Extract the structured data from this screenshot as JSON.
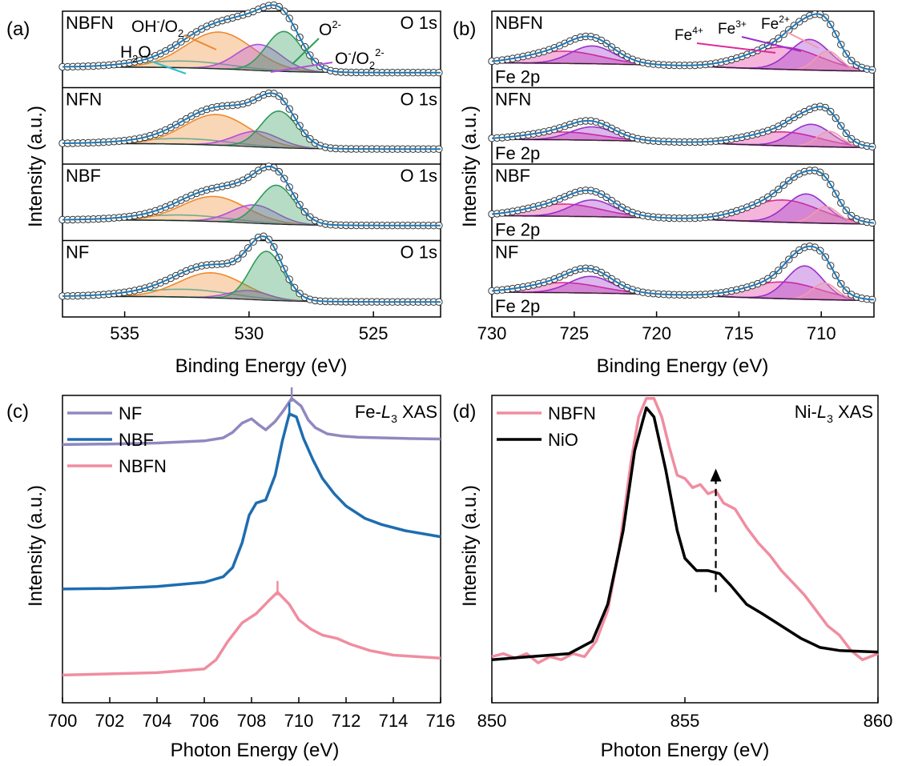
{
  "chart_data": [
    {
      "panel_label": "(a)",
      "type": "line",
      "xlabel": "Binding Energy (eV)",
      "ylabel": "Intensity (a.u.)",
      "xlim": [
        537.5,
        522.3
      ],
      "xticks": [
        535,
        530,
        525
      ],
      "spectrum_label": "O 1s",
      "annotations": [
        {
          "text": "OH",
          "sup": "-",
          "rest": "/O",
          "sub": "2",
          "color": "#ef8a2e"
        },
        {
          "text": "H",
          "sub": "2",
          "rest": "O",
          "color": "#2ebfc9"
        },
        {
          "text": "O",
          "sup": "2-",
          "color": "#2e9c5a"
        },
        {
          "text": "O",
          "sup": "-",
          "rest": "/O",
          "sub": "2",
          "sup2": "2-",
          "color": "#b44fd8"
        }
      ],
      "subpanels": [
        {
          "name": "NBFN",
          "components": [
            {
              "label": "H2O",
              "center": 532.6,
              "height": 0.12,
              "width": 1.9,
              "color": "#2ebfc9",
              "fill": false
            },
            {
              "label": "OH-/O2",
              "center": 531.2,
              "height": 0.66,
              "width": 1.35,
              "color": "#ef8a2e",
              "fill": true
            },
            {
              "label": "O-/O2 2-",
              "center": 529.6,
              "height": 0.47,
              "width": 0.9,
              "color": "#b44fd8",
              "fill": true
            },
            {
              "label": "O2-",
              "center": 528.6,
              "height": 0.72,
              "width": 0.72,
              "color": "#2e9c5a",
              "fill": true
            }
          ]
        },
        {
          "name": "NFN",
          "components": [
            {
              "label": "H2O",
              "center": 532.6,
              "height": 0.1,
              "width": 1.9,
              "color": "#2ebfc9",
              "fill": false
            },
            {
              "label": "OH-/O2",
              "center": 531.3,
              "height": 0.55,
              "width": 1.3,
              "color": "#ef8a2e",
              "fill": true
            },
            {
              "label": "O-/O2 2-",
              "center": 529.7,
              "height": 0.28,
              "width": 0.9,
              "color": "#b44fd8",
              "fill": true
            },
            {
              "label": "O2-",
              "center": 528.8,
              "height": 0.66,
              "width": 0.72,
              "color": "#2e9c5a",
              "fill": true
            }
          ]
        },
        {
          "name": "NBF",
          "components": [
            {
              "label": "H2O",
              "center": 532.6,
              "height": 0.1,
              "width": 1.9,
              "color": "#2ebfc9",
              "fill": false
            },
            {
              "label": "OH-/O2",
              "center": 531.4,
              "height": 0.45,
              "width": 1.3,
              "color": "#ef8a2e",
              "fill": true
            },
            {
              "label": "O-/O2 2-",
              "center": 529.8,
              "height": 0.33,
              "width": 0.9,
              "color": "#b44fd8",
              "fill": true
            },
            {
              "label": "O2-",
              "center": 528.9,
              "height": 0.7,
              "width": 0.72,
              "color": "#2e9c5a",
              "fill": true
            }
          ]
        },
        {
          "name": "NF",
          "components": [
            {
              "label": "H2O",
              "center": 532.6,
              "height": 0.14,
              "width": 1.9,
              "color": "#2ebfc9",
              "fill": false
            },
            {
              "label": "OH-/O2",
              "center": 531.5,
              "height": 0.45,
              "width": 1.3,
              "color": "#ef8a2e",
              "fill": true
            },
            {
              "label": "O-/O2 2-",
              "center": 530.0,
              "height": 0.16,
              "width": 0.8,
              "color": "#b44fd8",
              "fill": true
            },
            {
              "label": "O2-",
              "center": 529.3,
              "height": 0.88,
              "width": 0.66,
              "color": "#2e9c5a",
              "fill": true
            }
          ]
        }
      ]
    },
    {
      "panel_label": "(b)",
      "type": "line",
      "xlabel": "Binding Energy (eV)",
      "ylabel": "Intensity (a.u.)",
      "xlim": [
        730,
        706.8
      ],
      "xticks": [
        730,
        725,
        720,
        715,
        710
      ],
      "spectrum_label": "Fe 2p",
      "annotations": [
        {
          "text": "Fe",
          "sup": "4+",
          "color": "#e0299a"
        },
        {
          "text": "Fe",
          "sup": "3+",
          "color": "#9b2fc9"
        },
        {
          "text": "Fe",
          "sup": "2+",
          "color": "#f29aac"
        }
      ],
      "subpanels": [
        {
          "name": "NBFN",
          "components": [
            {
              "label": "Fe4+",
              "center": 712.3,
              "height": 0.4,
              "width": 2.2,
              "color": "#e0299a",
              "fill": true
            },
            {
              "label": "Fe3+",
              "center": 710.7,
              "height": 0.55,
              "width": 1.2,
              "color": "#9b2fc9",
              "fill": true
            },
            {
              "label": "Fe2+",
              "center": 709.6,
              "height": 0.35,
              "width": 0.75,
              "color": "#f29aac",
              "fill": true
            },
            {
              "label": "sat-4+",
              "center": 725.6,
              "height": 0.22,
              "width": 2.2,
              "color": "#e0299a",
              "fill": true
            },
            {
              "label": "sat-3+",
              "center": 723.9,
              "height": 0.32,
              "width": 1.3,
              "color": "#9b2fc9",
              "fill": true
            }
          ]
        },
        {
          "name": "NFN",
          "components": [
            {
              "label": "Fe4+",
              "center": 712.3,
              "height": 0.25,
              "width": 2.2,
              "color": "#e0299a",
              "fill": true
            },
            {
              "label": "Fe3+",
              "center": 710.6,
              "height": 0.4,
              "width": 1.2,
              "color": "#9b2fc9",
              "fill": true
            },
            {
              "label": "Fe2+",
              "center": 709.5,
              "height": 0.28,
              "width": 0.75,
              "color": "#f29aac",
              "fill": true
            },
            {
              "label": "sat-4+",
              "center": 725.6,
              "height": 0.14,
              "width": 2.2,
              "color": "#e0299a",
              "fill": true
            },
            {
              "label": "sat-3+",
              "center": 723.9,
              "height": 0.24,
              "width": 1.3,
              "color": "#9b2fc9",
              "fill": true
            }
          ]
        },
        {
          "name": "NBF",
          "components": [
            {
              "label": "Fe4+",
              "center": 712.3,
              "height": 0.4,
              "width": 2.2,
              "color": "#e0299a",
              "fill": true
            },
            {
              "label": "Fe3+",
              "center": 710.9,
              "height": 0.52,
              "width": 1.2,
              "color": "#9b2fc9",
              "fill": true
            },
            {
              "label": "Fe2+",
              "center": 709.7,
              "height": 0.3,
              "width": 0.75,
              "color": "#f29aac",
              "fill": true
            },
            {
              "label": "sat-4+",
              "center": 725.6,
              "height": 0.22,
              "width": 2.2,
              "color": "#e0299a",
              "fill": true
            },
            {
              "label": "sat-3+",
              "center": 723.9,
              "height": 0.3,
              "width": 1.3,
              "color": "#9b2fc9",
              "fill": true
            }
          ]
        },
        {
          "name": "NF",
          "components": [
            {
              "label": "Fe4+",
              "center": 712.3,
              "height": 0.3,
              "width": 2.2,
              "color": "#e0299a",
              "fill": true
            },
            {
              "label": "Fe3+",
              "center": 711.0,
              "height": 0.6,
              "width": 1.1,
              "color": "#9b2fc9",
              "fill": true
            },
            {
              "label": "Fe2+",
              "center": 709.8,
              "height": 0.3,
              "width": 0.75,
              "color": "#f29aac",
              "fill": true
            },
            {
              "label": "sat-4+",
              "center": 725.6,
              "height": 0.18,
              "width": 2.2,
              "color": "#e0299a",
              "fill": true
            },
            {
              "label": "sat-3+",
              "center": 724.0,
              "height": 0.3,
              "width": 1.3,
              "color": "#9b2fc9",
              "fill": true
            }
          ]
        }
      ]
    },
    {
      "panel_label": "(c)",
      "type": "line",
      "title_prefix": "Fe-",
      "title_italic": "L",
      "title_sub": "3",
      "title_suffix": " XAS",
      "xlabel": "Photon Energy (eV)",
      "ylabel": "Intensity (a.u.)",
      "xlim": [
        700,
        716
      ],
      "ylim": [
        0,
        1
      ],
      "xticks": [
        700,
        702,
        704,
        706,
        708,
        710,
        712,
        714,
        716
      ],
      "series": [
        {
          "name": "NF",
          "color": "#9088bf",
          "marker_x": 709.7,
          "x": [
            700,
            702,
            704,
            706,
            706.8,
            707.2,
            707.6,
            708.0,
            708.3,
            708.6,
            709.0,
            709.3,
            709.7,
            710.1,
            710.4,
            710.7,
            711.2,
            711.8,
            712.5,
            713.5,
            714.5,
            716
          ],
          "y": [
            0.84,
            0.842,
            0.845,
            0.852,
            0.862,
            0.88,
            0.91,
            0.924,
            0.905,
            0.888,
            0.915,
            0.945,
            0.99,
            0.965,
            0.92,
            0.895,
            0.875,
            0.868,
            0.864,
            0.862,
            0.86,
            0.858
          ]
        },
        {
          "name": "NBF",
          "color": "#1e6db0",
          "marker_x": 709.6,
          "x": [
            700,
            702,
            704,
            706,
            706.8,
            707.2,
            707.6,
            707.9,
            708.2,
            708.6,
            709.0,
            709.3,
            709.6,
            709.9,
            710.2,
            710.6,
            711.0,
            711.5,
            712.0,
            712.8,
            713.5,
            714.5,
            716
          ],
          "y": [
            0.37,
            0.372,
            0.378,
            0.392,
            0.41,
            0.44,
            0.52,
            0.61,
            0.65,
            0.66,
            0.74,
            0.85,
            0.94,
            0.93,
            0.86,
            0.79,
            0.73,
            0.68,
            0.64,
            0.6,
            0.58,
            0.56,
            0.54
          ]
        },
        {
          "name": "NBFN",
          "color": "#f08da0",
          "marker_x": 709.1,
          "x": [
            700,
            702,
            704,
            706,
            706.5,
            707.0,
            707.6,
            708.2,
            708.7,
            709.1,
            709.6,
            710.0,
            710.5,
            711.0,
            711.6,
            712.2,
            713,
            714,
            715,
            716
          ],
          "y": [
            0.09,
            0.094,
            0.098,
            0.11,
            0.14,
            0.2,
            0.26,
            0.29,
            0.33,
            0.36,
            0.32,
            0.27,
            0.24,
            0.22,
            0.21,
            0.19,
            0.17,
            0.155,
            0.15,
            0.145
          ]
        }
      ]
    },
    {
      "panel_label": "(d)",
      "type": "line",
      "title_prefix": "Ni-",
      "title_italic": "L",
      "title_sub": "3",
      "title_suffix": " XAS",
      "xlabel": "Photon Energy (eV)",
      "ylabel": "Intensity (a.u.)",
      "xlim": [
        850,
        860
      ],
      "ylim": [
        0,
        1
      ],
      "xticks": [
        850,
        855,
        860
      ],
      "arrow_x": 855.8,
      "series": [
        {
          "name": "NBFN",
          "color": "#f08da0",
          "x": [
            850,
            850.3,
            850.6,
            850.9,
            851.2,
            851.5,
            851.8,
            852.1,
            852.4,
            852.7,
            853.0,
            853.3,
            853.6,
            853.8,
            854.0,
            854.2,
            854.4,
            854.6,
            854.8,
            855.0,
            855.2,
            855.4,
            855.6,
            855.8,
            856.0,
            856.3,
            856.6,
            856.9,
            857.2,
            857.5,
            857.8,
            858.1,
            858.4,
            858.7,
            859.0,
            859.3,
            859.6,
            860
          ],
          "y": [
            0.15,
            0.16,
            0.145,
            0.16,
            0.13,
            0.15,
            0.14,
            0.16,
            0.15,
            0.2,
            0.3,
            0.5,
            0.78,
            0.93,
            0.99,
            0.99,
            0.93,
            0.83,
            0.74,
            0.73,
            0.7,
            0.71,
            0.68,
            0.69,
            0.65,
            0.63,
            0.57,
            0.52,
            0.48,
            0.43,
            0.39,
            0.35,
            0.3,
            0.25,
            0.22,
            0.17,
            0.14,
            0.16
          ]
        },
        {
          "name": "NiO",
          "color": "#000000",
          "x": [
            850,
            851,
            852,
            852.6,
            853.0,
            853.4,
            853.7,
            854.0,
            854.2,
            854.5,
            854.8,
            855.0,
            855.3,
            855.6,
            855.9,
            856.2,
            856.6,
            857.0,
            857.5,
            858.0,
            858.5,
            859.0,
            860
          ],
          "y": [
            0.14,
            0.15,
            0.16,
            0.2,
            0.32,
            0.56,
            0.82,
            0.96,
            0.93,
            0.76,
            0.56,
            0.47,
            0.43,
            0.43,
            0.42,
            0.38,
            0.32,
            0.29,
            0.25,
            0.21,
            0.18,
            0.17,
            0.165
          ]
        }
      ]
    }
  ]
}
